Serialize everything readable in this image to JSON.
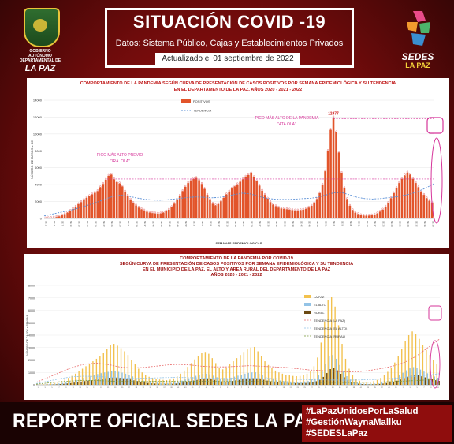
{
  "header": {
    "title": "SITUACIÓN COVID -19",
    "subtitle": "Datos: Sistema Público, Cajas y Establecimientos Privados",
    "updated": "Actualizado el  01 septiembre  de 2022",
    "left_logo_org": "GOBIERNO AUTÓNOMO DEPARTAMENTAL DE",
    "left_logo_name": "LA PAZ",
    "right_logo_name": "SEDES",
    "right_logo_sub": "LA PAZ"
  },
  "footer": {
    "main": "REPORTE OFICIAL SEDES LA PAZ",
    "hashtags": [
      "#LaPazUnidosPorLaSalud",
      "#GestiónWaynaMallku",
      "#SEDESLaPaz"
    ]
  },
  "colors": {
    "background": "#6e0b0b",
    "bar_positive": "#e2542a",
    "trend": "#5a8fd6",
    "la_paz": "#f2c14e",
    "el_alto": "#93c3e6",
    "rural": "#6b4a12",
    "trend_lapaz": "#e86a6a",
    "trend_rural": "#7b9a3a",
    "annotation": "#d6359a"
  },
  "chart_data": [
    {
      "type": "bar",
      "title_line1": "COMPORTAMIENTO DE LA PANDEMIA SEGÚN CURVA DE PRESENTACIÓN DE CASOS POSITIVOS POR SEMANA EPIDEMIOLÓGICA Y SU TENDENCIA",
      "title_line2": "EN EL DEPARTAMENTO DE LA PAZ, AÑOS 2020 - 2021 - 2022",
      "xlabel": "SEMANAS EPIDEMIOLÓGICAS",
      "ylabel": "NÚMERO DE CASOS x SE.",
      "ylim": [
        0,
        14000
      ],
      "yticks": [
        "0",
        "2000",
        "4000",
        "6000",
        "8000",
        "10000",
        "12000",
        "14000"
      ],
      "legend": [
        "POSITIVOS",
        "TENDENCIA"
      ],
      "annotations": [
        {
          "text": "PICO MÁS ALTO PREVIO",
          "sub": "\"1RA. OLA\""
        },
        {
          "text": "PICO MÁS ALTO DE LA PANDEMIA",
          "sub": "\"4TA OLA\""
        }
      ],
      "peak_label": "11977",
      "series": [
        {
          "name": "POSITIVOS",
          "values": [
            20,
            40,
            60,
            110,
            180,
            260,
            380,
            520,
            700,
            900,
            1150,
            1400,
            1700,
            1950,
            2200,
            2450,
            2650,
            2850,
            3050,
            3250,
            3700,
            4100,
            4600,
            5050,
            5200,
            4650,
            4300,
            4150,
            3800,
            3200,
            2700,
            2250,
            1850,
            1550,
            1300,
            1100,
            950,
            800,
            700,
            650,
            600,
            580,
            600,
            700,
            850,
            1050,
            1350,
            1750,
            2200,
            2700,
            3250,
            3750,
            4200,
            4500,
            4700,
            4800,
            4550,
            4100,
            3500,
            2800,
            2200,
            1750,
            1550,
            1700,
            2050,
            2450,
            2850,
            3200,
            3550,
            3800,
            4050,
            4350,
            4650,
            4950,
            5150,
            5350,
            4900,
            4400,
            3900,
            3300,
            2800,
            2350,
            1950,
            1650,
            1450,
            1300,
            1200,
            1150,
            1100,
            1050,
            1000,
            950,
            950,
            1000,
            1050,
            1150,
            1300,
            1500,
            1800,
            2300,
            3000,
            4000,
            5600,
            8000,
            10500,
            11977,
            10200,
            7800,
            5400,
            3600,
            2300,
            1500,
            1000,
            700,
            520,
            400,
            350,
            330,
            340,
            380,
            460,
            600,
            800,
            1050,
            1400,
            1850,
            2400,
            3000,
            3600,
            4200,
            4700,
            5100,
            5450,
            5200,
            4700,
            4200,
            3700,
            3200,
            2800,
            2400,
            2100,
            1800
          ]
        },
        {
          "name": "TENDENCIA",
          "values": [
            300,
            500,
            700,
            900,
            1100,
            1350,
            1650,
            1950,
            2300,
            2600,
            2750,
            2650,
            2450,
            2300,
            2200,
            2150,
            2200,
            2300,
            2400,
            2500,
            2550,
            2500,
            2450,
            2500,
            2650,
            2850,
            3000,
            2900,
            2650,
            2400,
            2300,
            2250,
            2250,
            2300,
            2350,
            2400,
            2550,
            2800,
            3050,
            3050,
            2800,
            2500,
            2350,
            2300,
            2350,
            2450,
            2550,
            2700,
            2900,
            3200,
            3600,
            4100
          ]
        }
      ]
    },
    {
      "type": "bar",
      "title_line1": "COMPORTAMIENTO DE LA PANDEMIA POR COVID-19",
      "title_line2": "SEGÚN CURVA DE PRESENTACIÓN DE CASOS POSITIVOS POR SEMANA EPIDEMIOLÓGICA Y SU TENDENCIA",
      "title_line3": "EN EL  MUNICIPIO DE LA PAZ, EL ALTO Y ÁREA RURAL DEL DEPARTAMENTO DE LA PAZ",
      "title_line4": "AÑOS 2020 - 2021 - 2022",
      "ylabel": "NÚMERO DE CASOS x SEMANA",
      "ylim": [
        0,
        8000
      ],
      "yticks": [
        "0",
        "1000",
        "2000",
        "3000",
        "4000",
        "5000",
        "6000",
        "7000",
        "8000"
      ],
      "legend": [
        "LA PAZ",
        "EL ALTO",
        "RURAL",
        "TENDENCIA (LA PAZ)",
        "TENDENCIA (EL ALTO)",
        "TENDENCIA (RURAL)"
      ],
      "series": [
        {
          "name": "LA PAZ",
          "values": [
            10,
            20,
            40,
            70,
            110,
            160,
            230,
            320,
            430,
            560,
            720,
            900,
            1100,
            1300,
            1500,
            1700,
            1900,
            2100,
            2300,
            2600,
            2900,
            3200,
            3300,
            3150,
            2950,
            2700,
            2400,
            2000,
            1650,
            1300,
            1000,
            800,
            650,
            550,
            480,
            430,
            400,
            380,
            420,
            520,
            680,
            900,
            1150,
            1450,
            1750,
            2050,
            2350,
            2550,
            2650,
            2500,
            2150,
            1750,
            1400,
            1250,
            1400,
            1650,
            1900,
            2150,
            2400,
            2650,
            2850,
            3000,
            3050,
            2700,
            2300,
            1900,
            1600,
            1350,
            1150,
            1000,
            900,
            820,
            760,
            720,
            700,
            720,
            780,
            900,
            1100,
            1500,
            2200,
            3400,
            5100,
            6800,
            7100,
            6300,
            4800,
            3300,
            2100,
            1300,
            800,
            500,
            330,
            250,
            220,
            240,
            300,
            400,
            560,
            780,
            1050,
            1400,
            1800,
            2300,
            2900,
            3500,
            4000,
            4300,
            4100,
            3700,
            3200,
            2800,
            2400,
            2000,
            1700
          ]
        },
        {
          "name": "EL ALTO",
          "values": [
            5,
            10,
            20,
            35,
            55,
            80,
            110,
            150,
            200,
            260,
            330,
            400,
            480,
            560,
            640,
            720,
            800,
            870,
            940,
            1000,
            1050,
            1080,
            1100,
            1050,
            980,
            900,
            800,
            680,
            560,
            450,
            360,
            290,
            240,
            200,
            180,
            160,
            150,
            145,
            160,
            200,
            260,
            340,
            430,
            530,
            630,
            730,
            820,
            880,
            900,
            850,
            740,
            610,
            500,
            450,
            500,
            580,
            660,
            740,
            820,
            900,
            960,
            1000,
            1010,
            900,
            770,
            640,
            540,
            460,
            400,
            350,
            310,
            280,
            260,
            250,
            245,
            250,
            270,
            310,
            380,
            520,
            760,
            1150,
            1700,
            2300,
            2400,
            2100,
            1600,
            1100,
            700,
            430,
            270,
            170,
            110,
            85,
            75,
            80,
            100,
            135,
            190,
            260,
            350,
            470,
            600,
            770,
            970,
            1170,
            1330,
            1430,
            1370,
            1230,
            1070,
            930,
            800,
            670,
            570
          ]
        },
        {
          "name": "RURAL",
          "values": [
            3,
            6,
            12,
            20,
            30,
            45,
            60,
            80,
            110,
            140,
            180,
            220,
            260,
            300,
            340,
            380,
            420,
            460,
            500,
            540,
            570,
            590,
            600,
            570,
            530,
            480,
            430,
            360,
            300,
            240,
            190,
            150,
            125,
            105,
            95,
            85,
            80,
            78,
            85,
            105,
            140,
            185,
            235,
            290,
            345,
            400,
            450,
            480,
            490,
            460,
            400,
            330,
            270,
            240,
            270,
            315,
            360,
            405,
            450,
            490,
            520,
            540,
            545,
            485,
            415,
            345,
            290,
            250,
            215,
            190,
            170,
            155,
            145,
            140,
            138,
            140,
            150,
            170,
            210,
            290,
            420,
            640,
            950,
            1270,
            1340,
            1170,
            890,
            610,
            390,
            240,
            150,
            95,
            60,
            47,
            42,
            45,
            55,
            75,
            105,
            145,
            195,
            260,
            335,
            430,
            540,
            650,
            740,
            800,
            765,
            690,
            600,
            520,
            450,
            375,
            320
          ]
        },
        {
          "name": "TENDENCIA (LA PAZ)",
          "values": [
            200,
            600,
            1000,
            1400,
            1650,
            1750,
            1650,
            1450,
            1350,
            1400,
            1500,
            1600,
            1650,
            1600,
            1500,
            1450,
            1450,
            1500,
            1550,
            1500,
            1450,
            1400,
            1300,
            1200,
            1150,
            1100,
            1050,
            1050,
            1150,
            1300,
            1500,
            1800,
            2300,
            3000,
            3700
          ]
        },
        {
          "name": "TENDENCIA (EL ALTO)",
          "values": [
            100,
            300,
            500,
            650,
            700,
            680,
            620,
            560,
            520,
            530,
            560,
            590,
            600,
            580,
            550,
            530,
            520,
            520,
            530,
            520,
            500,
            480,
            450,
            420,
            400,
            390,
            380,
            390,
            420,
            460,
            520,
            600,
            700,
            800,
            900
          ]
        },
        {
          "name": "TENDENCIA (RURAL)",
          "values": [
            50,
            150,
            250,
            320,
            350,
            340,
            310,
            280,
            260,
            265,
            280,
            295,
            300,
            290,
            275,
            265,
            260,
            260,
            265,
            260,
            250,
            240,
            225,
            210,
            200,
            195,
            190,
            195,
            210,
            230,
            260,
            300,
            350,
            400,
            450
          ]
        }
      ]
    }
  ]
}
